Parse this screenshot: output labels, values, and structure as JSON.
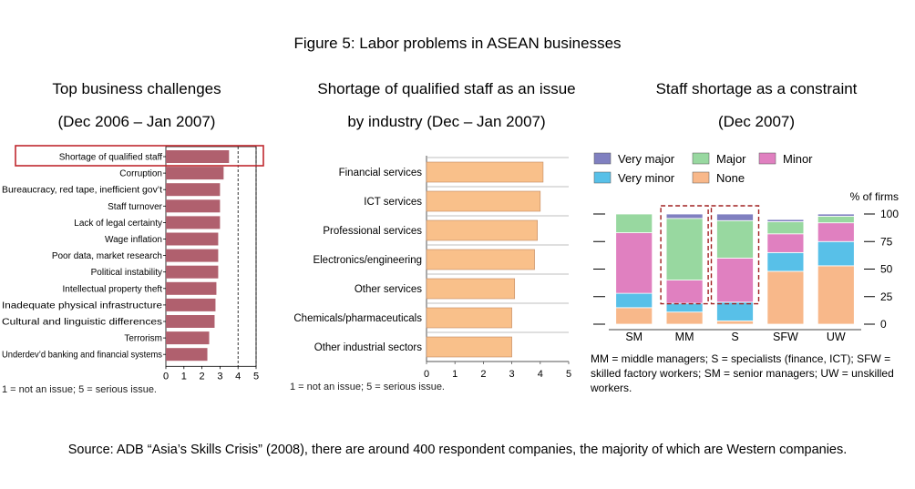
{
  "figure_title": "Figure 5: Labor problems in ASEAN businesses",
  "panels": [
    {
      "title_line1": "Top business challenges",
      "title_line2": "(Dec 2006 – Jan 2007)",
      "footnote": "1 = not an issue;  5 = serious issue."
    },
    {
      "title_line1": "Shortage of qualified staff as an issue",
      "title_line2": "by industry (Dec – Jan 2007)",
      "footnote": "1 = not an issue;  5 = serious issue."
    },
    {
      "title_line1": "Staff shortage as a constraint",
      "title_line2": "(Dec 2007)",
      "footnote": "MM = middle managers; S = specialists (finance, ICT); SFW = skilled factory workers; SM = senior managers; UW = unskilled workers."
    }
  ],
  "source": "Source: ADB “Asia’s Skills Crisis” (2008), there are around 400 respondent companies, the majority of which are Western companies.",
  "colors": {
    "challenge_bar": "#b0606e",
    "industry_bar": "#f9c08a",
    "highlight": "#c0282e",
    "very_major": "#8080c0",
    "major": "#98d8a0",
    "minor": "#e080c0",
    "very_minor": "#58c0e8",
    "none": "#f8b88a"
  },
  "chart_data": [
    {
      "type": "bar",
      "orientation": "horizontal",
      "categories": [
        "Shortage of qualified staff",
        "Corruption",
        "Bureaucracy, red tape, inefficient gov’t",
        "Staff turnover",
        "Lack of legal certainty",
        "Wage inflation",
        "Poor data, market research",
        "Political instability",
        "Intellectual property theft",
        "Inadequate physical infrastructure",
        "Cultural and linguistic differences",
        "Terrorism",
        "Underdev’d banking and financial systems"
      ],
      "values": [
        3.5,
        3.2,
        3.0,
        3.0,
        3.0,
        2.9,
        2.9,
        2.9,
        2.8,
        2.75,
        2.7,
        2.4,
        2.3
      ],
      "xlim": [
        0,
        5
      ],
      "xticks": [
        "0",
        "1",
        "2",
        "3",
        "4",
        "5"
      ],
      "highlighted": "Shortage of qualified staff",
      "grid": "dashed lines at 4 and 5"
    },
    {
      "type": "bar",
      "orientation": "horizontal",
      "categories": [
        "Financial services",
        "ICT services",
        "Professional services",
        "Electronics/engineering",
        "Other services",
        "Chemicals/pharmaceuticals",
        "Other industrial sectors"
      ],
      "values": [
        4.1,
        4.0,
        3.9,
        3.8,
        3.1,
        3.0,
        3.0
      ],
      "xlim": [
        0,
        5
      ],
      "xticks": [
        "0",
        "1",
        "2",
        "3",
        "4",
        "5"
      ],
      "grid": "horizontal separators between bars"
    },
    {
      "type": "bar",
      "stacked": true,
      "categories": [
        "SM",
        "MM",
        "S",
        "SFW",
        "UW"
      ],
      "ylabel": "% of firms",
      "ylim": [
        0,
        100
      ],
      "yticks": [
        "0",
        "25",
        "50",
        "75",
        "100"
      ],
      "highlighted": [
        "MM",
        "S"
      ],
      "series": [
        {
          "name": "None",
          "values": [
            15,
            11,
            3,
            48,
            53
          ]
        },
        {
          "name": "Very minor",
          "values": [
            13,
            8,
            17,
            17,
            22
          ]
        },
        {
          "name": "Minor",
          "values": [
            55,
            21,
            40,
            17,
            17
          ]
        },
        {
          "name": "Major",
          "values": [
            17,
            56,
            34,
            11,
            6
          ]
        },
        {
          "name": "Very major",
          "values": [
            0,
            4,
            6,
            2,
            2
          ]
        }
      ],
      "legend": [
        {
          "name": "Very major",
          "color": "#8080c0"
        },
        {
          "name": "Major",
          "color": "#98d8a0"
        },
        {
          "name": "Minor",
          "color": "#e080c0"
        },
        {
          "name": "Very minor",
          "color": "#58c0e8"
        },
        {
          "name": "None",
          "color": "#f8b88a"
        }
      ]
    }
  ]
}
